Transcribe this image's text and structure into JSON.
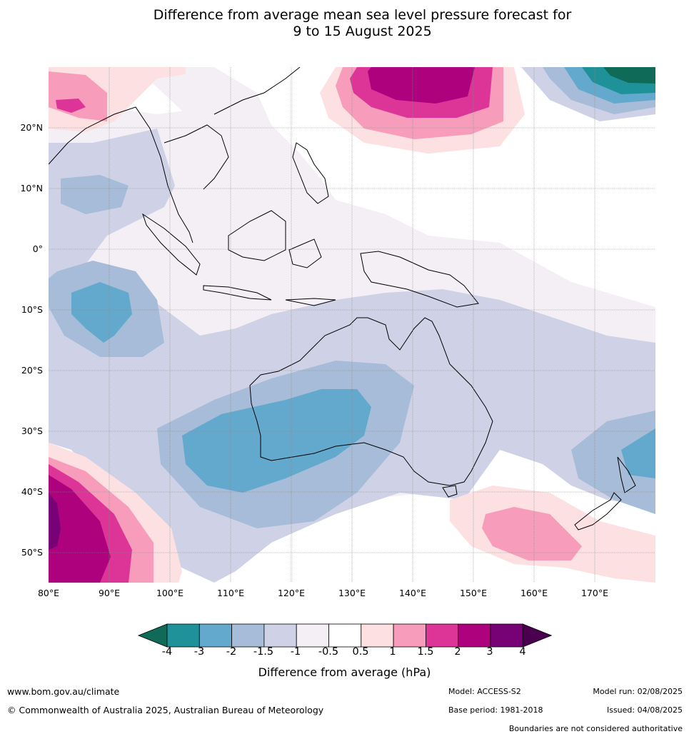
{
  "title_lines": [
    "Difference from average mean sea level pressure forecast for",
    "9 to 15 August 2025"
  ],
  "lat_labels": [
    "20°N",
    "10°N",
    "0°",
    "10°S",
    "20°S",
    "30°S",
    "40°S",
    "50°S"
  ],
  "lon_labels": [
    "80°E",
    "90°E",
    "100°E",
    "110°E",
    "120°E",
    "130°E",
    "140°E",
    "150°E",
    "160°E",
    "170°E"
  ],
  "legend": {
    "ticks": [
      "-4",
      "-3",
      "-2",
      "-1.5",
      "-1",
      "-0.5",
      "0.5",
      "1",
      "1.5",
      "2",
      "3",
      "4"
    ],
    "colors": [
      "#0f6b57",
      "#1f9299",
      "#63a9cd",
      "#a6bcd9",
      "#cfd2e7",
      "#f4eef5",
      "#ffffff",
      "#fde0e2",
      "#f79dbb",
      "#dd3597",
      "#ad017e",
      "#770276",
      "#4a004f"
    ],
    "title": "Difference from average (hPa)"
  },
  "footer": {
    "website": "www.bom.gov.au/climate",
    "copyright": "© Commonwealth of Australia 2025, Australian Bureau of Meteorology",
    "model": "Model: ACCESS-S2",
    "base_period": "Base period: 1981-2018",
    "model_run": "Model run: 02/08/2025",
    "issued": "Issued: 04/08/2025",
    "disclaimer": "Boundaries are not considered authoritative"
  }
}
